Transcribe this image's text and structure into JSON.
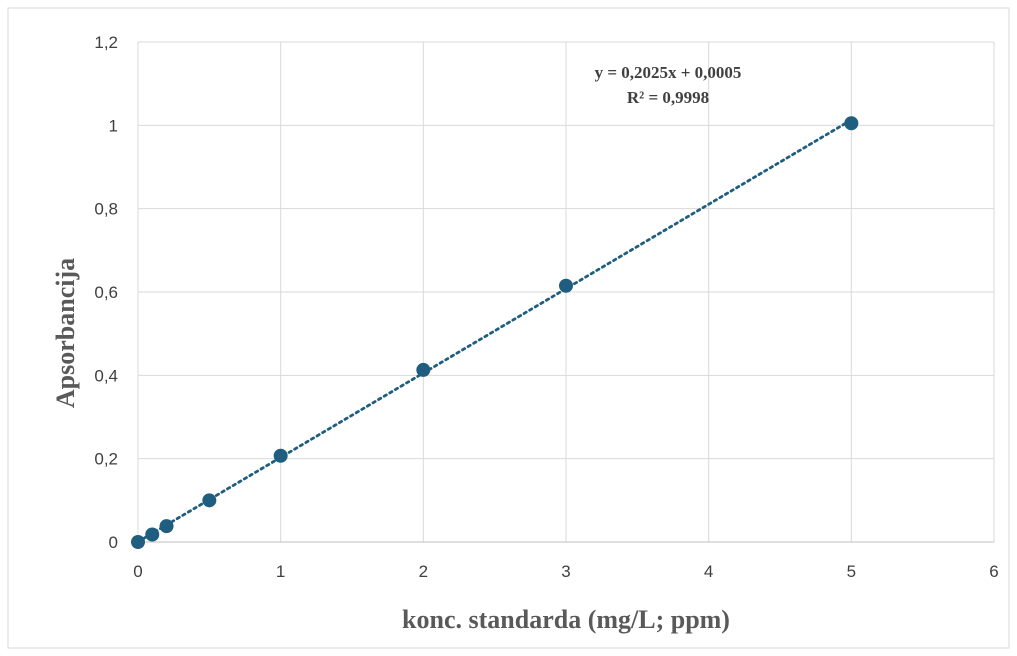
{
  "chart_data": {
    "type": "scatter",
    "title": "",
    "xlabel": "konc. standarda (mg/L; ppm)",
    "ylabel": "Apsorbancija",
    "xlim": [
      0,
      6
    ],
    "ylim": [
      0,
      1.2
    ],
    "x_ticks": [
      "0",
      "1",
      "2",
      "3",
      "4",
      "5",
      "6"
    ],
    "y_ticks": [
      "0",
      "0,2",
      "0,4",
      "0,6",
      "0,8",
      "1",
      "1,2"
    ],
    "grid": true,
    "series": [
      {
        "x": [
          0,
          0.1,
          0.2,
          0.5,
          1,
          2,
          3,
          5
        ],
        "y": [
          0,
          0.018,
          0.038,
          0.1,
          0.207,
          0.413,
          0.615,
          1.005
        ],
        "color": "#1f5e7e"
      }
    ],
    "trendline": {
      "slope": 0.2025,
      "intercept": 0.0005,
      "style": "dotted",
      "color": "#1f5e7e",
      "equation": "y = 0,2025x + 0,0005",
      "r_squared": "R² = 0,9998"
    }
  }
}
